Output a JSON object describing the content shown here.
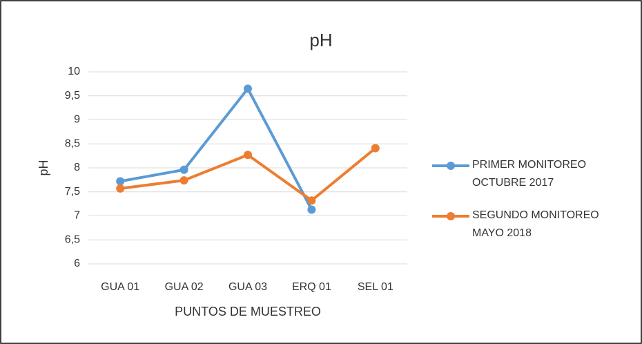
{
  "chart_data": {
    "type": "line",
    "title": "pH",
    "x_label": "PUNTOS DE MUESTREO",
    "y_label": "pH",
    "categories": [
      "GUA 01",
      "GUA 02",
      "GUA 03",
      "ERQ 01",
      "SEL 01"
    ],
    "series": [
      {
        "name": "PRIMER MONITOREO OCTUBRE 2017",
        "color": "#5b9bd5",
        "values": [
          7.72,
          7.96,
          9.65,
          7.13,
          null
        ]
      },
      {
        "name": "SEGUNDO MONITOREO MAYO 2018",
        "color": "#ed7d31",
        "values": [
          7.57,
          7.74,
          8.27,
          7.32,
          8.41
        ]
      }
    ],
    "ylim": [
      6,
      10
    ],
    "yticks": [
      6,
      {
        "value": 6.5,
        "label": "6,5"
      },
      7,
      {
        "value": 7.5,
        "label": "7,5"
      },
      8,
      {
        "value": 8.5,
        "label": "8,5"
      },
      9,
      {
        "value": 9.5,
        "label": "9,5"
      },
      10
    ],
    "grid": true,
    "legend": "right"
  }
}
